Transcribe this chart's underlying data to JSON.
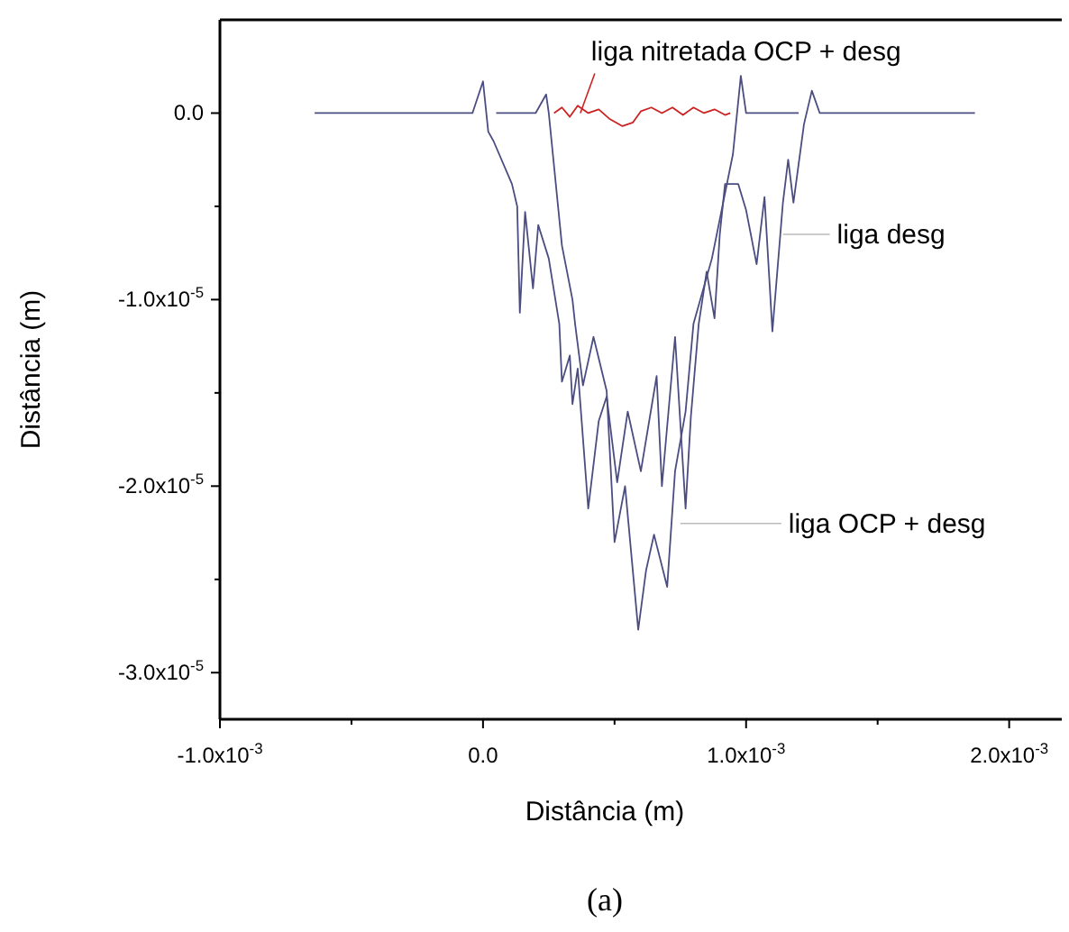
{
  "chart_data": {
    "type": "line",
    "xlabel": "Distância (m)",
    "ylabel": "Distância (m)",
    "xlim": [
      -0.001,
      0.0022
    ],
    "xticks": [
      {
        "value": -0.001,
        "label": "-1.0x10$^{-3}$"
      },
      {
        "value": -0.0005,
        "label": null
      },
      {
        "value": 0,
        "label": "0.0"
      },
      {
        "value": 0.0005,
        "label": null
      },
      {
        "value": 0.001,
        "label": "1.0x10$^{-3}$"
      },
      {
        "value": 0.0015,
        "label": null
      },
      {
        "value": 0.002,
        "label": "2.0x10$^{-3}$"
      }
    ],
    "ylim": [
      -3.25e-05,
      5e-06
    ],
    "yticks": [
      {
        "value": -3e-05,
        "label": "-3.0x10$^{-5}$"
      },
      {
        "value": -2.5e-05,
        "label": null
      },
      {
        "value": -2e-05,
        "label": "-2.0x10$^{-5}$"
      },
      {
        "value": -1.5e-05,
        "label": null
      },
      {
        "value": -1e-05,
        "label": "-1.0x10$^{-5}$"
      },
      {
        "value": -5e-06,
        "label": null
      },
      {
        "value": 0,
        "label": "0.0"
      }
    ],
    "grid": false,
    "marker": "none",
    "line_style": "solid",
    "series": [
      {
        "color": "#4b4d80",
        "x": [
          -0.00064,
          -0.00026,
          -4e-05,
          0,
          2e-05,
          4e-05,
          0.00011,
          0.00013,
          0.00014,
          0.00016,
          0.00019,
          0.00021,
          0.00025,
          0.00029,
          0.0003,
          0.00033,
          0.00034,
          0.00036,
          0.0004,
          0.00044,
          0.00047,
          0.00051,
          0.00055,
          0.0006,
          0.00066,
          0.00068,
          0.00073,
          0.00077,
          0.00079,
          0.00082,
          0.00085,
          0.00088,
          0.0009,
          0.00092,
          0.00097,
          0.001,
          0.00104,
          0.00107,
          0.0011,
          0.00114,
          0.00116,
          0.00118,
          0.00122,
          0.00125,
          0.00128,
          0.0015,
          0.00187
        ],
        "values": [
          0,
          0,
          0,
          1.7e-06,
          -1e-06,
          -1.5e-06,
          -3.8e-06,
          -5e-06,
          -1.07e-05,
          -5.3e-06,
          -9.4e-06,
          -6e-06,
          -7.8e-06,
          -1.13e-05,
          -1.44e-05,
          -1.3e-05,
          -1.56e-05,
          -1.37e-05,
          -2.12e-05,
          -1.65e-05,
          -1.52e-05,
          -1.98e-05,
          -1.6e-05,
          -1.92e-05,
          -1.41e-05,
          -2e-05,
          -1.2e-05,
          -2.12e-05,
          -1.63e-05,
          -1.13e-05,
          -8.5e-06,
          -1.1e-05,
          -6.5e-06,
          -3.8e-06,
          -3.8e-06,
          -5.2e-06,
          -8.1e-06,
          -4.5e-06,
          -1.17e-05,
          -4.8e-06,
          -2.5e-06,
          -4.8e-06,
          -6e-07,
          1.2e-06,
          0,
          0,
          0
        ]
      },
      {
        "color": "#4b4d80",
        "x": [
          5e-05,
          0.0002,
          0.00024,
          0.00025,
          0.0003,
          0.00034,
          0.00035,
          0.00038,
          0.00042,
          0.00047,
          0.0005,
          0.00054,
          0.00059,
          0.00062,
          0.00065,
          0.0007,
          0.00073,
          0.00077,
          0.0008,
          0.00087,
          0.00091,
          0.00095,
          0.00098,
          0.001,
          0.0011,
          0.0012
        ],
        "values": [
          0,
          0,
          1e-06,
          0,
          -7.1e-06,
          -1e-05,
          -1.13e-05,
          -1.46e-05,
          -1.2e-05,
          -1.49e-05,
          -2.3e-05,
          -2e-05,
          -2.77e-05,
          -2.45e-05,
          -2.26e-05,
          -2.54e-05,
          -1.92e-05,
          -1.6e-05,
          -1.13e-05,
          -7.8e-06,
          -5e-06,
          -2.2e-06,
          2e-06,
          0,
          0,
          0
        ]
      },
      {
        "color": "#cc2222",
        "x": [
          0.00027,
          0.0003,
          0.00033,
          0.00036,
          0.0004,
          0.00044,
          0.00048,
          0.00053,
          0.00057,
          0.0006,
          0.00064,
          0.00068,
          0.00072,
          0.00076,
          0.0008,
          0.00084,
          0.00088,
          0.00092,
          0.00094
        ],
        "values": [
          0,
          3e-07,
          -2e-07,
          4e-07,
          0,
          2e-07,
          -3e-07,
          -7e-07,
          -5e-07,
          1e-07,
          3e-07,
          0,
          3e-07,
          -1e-07,
          3e-07,
          0,
          2e-07,
          -1e-07,
          0
        ]
      }
    ],
    "annotations": [
      {
        "text": "liga nitretada OCP + desg",
        "x": 0.00037,
        "y": 0
      },
      {
        "text": "liga desg",
        "x": 0.00114,
        "y": -6.5e-06
      },
      {
        "text": "liga  OCP + desg",
        "x": 0.00075,
        "y": -2.2e-05
      },
      "(a)"
    ]
  }
}
